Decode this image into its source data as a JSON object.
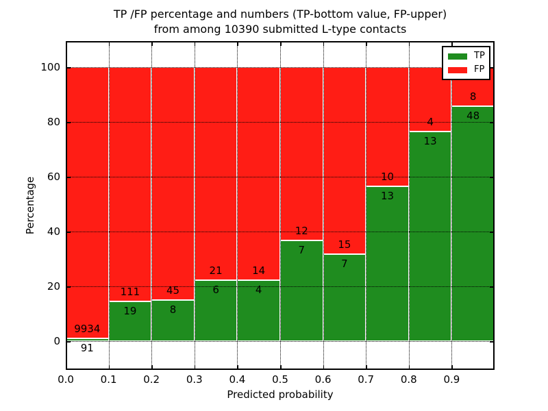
{
  "title": {
    "line1": "TP /FP percentage and numbers (TP-bottom value, FP-upper)",
    "line2": "from among 10390 submitted L-type contacts"
  },
  "legend": {
    "items": [
      {
        "label": "TP",
        "color": "#1f8c1f"
      },
      {
        "label": "FP",
        "color": "#ff1d15"
      }
    ]
  },
  "chart_data": {
    "type": "bar",
    "stacked": true,
    "title": "TP /FP percentage and numbers (TP-bottom value, FP-upper) from among 10390 submitted L-type contacts",
    "xlabel": "Predicted probability",
    "ylabel": "Percentage",
    "total_submitted": 10390,
    "bin_edges": [
      0.0,
      0.1,
      0.2,
      0.3,
      0.4,
      0.5,
      0.6,
      0.7,
      0.8,
      0.9,
      1.0
    ],
    "x_ticks": [
      0.0,
      0.1,
      0.2,
      0.3,
      0.4,
      0.5,
      0.6,
      0.7,
      0.8,
      0.9
    ],
    "x_tick_labels": [
      "0.0",
      "0.1",
      "0.2",
      "0.3",
      "0.4",
      "0.5",
      "0.6",
      "0.7",
      "0.8",
      "0.9"
    ],
    "y_ticks": [
      0,
      20,
      40,
      60,
      80,
      100
    ],
    "y_tick_labels": [
      "0",
      "20",
      "40",
      "60",
      "80",
      "100"
    ],
    "xlim": [
      0.0,
      1.0
    ],
    "ylim": [
      -10.5,
      109.5
    ],
    "grid": {
      "style": "dotted",
      "axes": "both",
      "above_bars": true
    },
    "legend_position": "upper right",
    "series": [
      {
        "name": "TP",
        "color": "#1f8c1f",
        "position": "bottom",
        "counts": [
          91,
          19,
          8,
          6,
          4,
          7,
          7,
          13,
          13,
          48
        ]
      },
      {
        "name": "FP",
        "color": "#ff1d15",
        "position": "top",
        "counts": [
          9934,
          111,
          45,
          21,
          14,
          12,
          15,
          10,
          4,
          8
        ]
      }
    ],
    "bars_sum_to_percent": 100
  }
}
